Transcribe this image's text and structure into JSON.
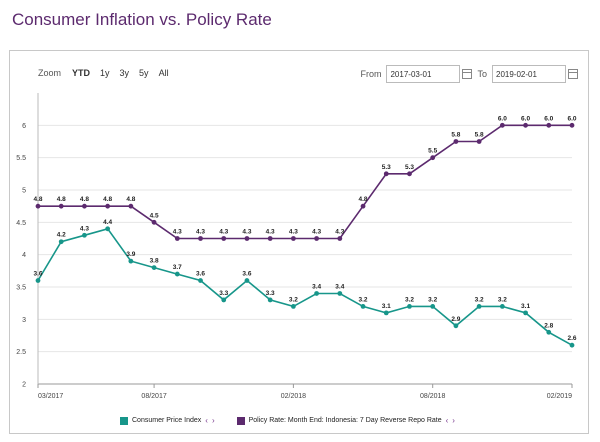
{
  "page": {
    "title": "Consumer Inflation vs. Policy Rate"
  },
  "toolbar": {
    "zoom_label": "Zoom",
    "zoom_buttons": [
      "YTD",
      "1y",
      "3y",
      "5y",
      "All"
    ],
    "from_label": "From",
    "from_value": "2017-03-01",
    "to_label": "To",
    "to_value": "2019-02-01"
  },
  "colors": {
    "cpi": "#17968a",
    "policy": "#5c2a6e",
    "grid": "#e6e6e6"
  },
  "chart_data": {
    "type": "line",
    "title": "Consumer Inflation vs. Policy Rate",
    "x_ticks": [
      "03/2017",
      "08/2017",
      "02/2018",
      "08/2018",
      "02/2019"
    ],
    "x_tick_index": [
      0,
      5,
      11,
      17,
      23
    ],
    "ylim": [
      2,
      6.5
    ],
    "y_ticks": [
      "2",
      "2.5",
      "3",
      "3.5",
      "4",
      "4.5",
      "5",
      "5.5",
      "6"
    ],
    "series": [
      {
        "name": "Consumer Price Index",
        "values": [
          3.6,
          4.2,
          4.3,
          4.4,
          3.9,
          3.8,
          3.7,
          3.6,
          3.3,
          3.6,
          3.3,
          3.2,
          3.4,
          3.4,
          3.2,
          3.1,
          3.2,
          3.2,
          2.9,
          3.2,
          3.2,
          3.1,
          2.8,
          2.6
        ],
        "labels": [
          "3.6",
          "4.2",
          "4.3",
          "4.4",
          "3.9",
          "3.8",
          "3.7",
          "3.6",
          "3.3",
          "3.6",
          "3.3",
          "3.2",
          "3.4",
          "3.4",
          "3.2",
          "3.1",
          "3.2",
          "3.2",
          "2.9",
          "3.2",
          "3.2",
          "3.1",
          "2.8",
          "2.6"
        ]
      },
      {
        "name": "Policy Rate: Month End: Indonesia: 7 Day Reverse Repo Rate",
        "values": [
          4.75,
          4.75,
          4.75,
          4.75,
          4.75,
          4.5,
          4.25,
          4.25,
          4.25,
          4.25,
          4.25,
          4.25,
          4.25,
          4.25,
          4.75,
          5.25,
          5.25,
          5.5,
          5.75,
          5.75,
          6.0,
          6.0,
          6.0,
          6.0
        ],
        "labels": [
          "4.8",
          "4.8",
          "4.8",
          "4.8",
          "4.8",
          "4.5",
          "4.3",
          "4.3",
          "4.3",
          "4.3",
          "4.3",
          "4.3",
          "4.3",
          "4.3",
          "4.8",
          "5.3",
          "5.3",
          "5.5",
          "5.8",
          "5.8",
          "6.0",
          "6.0",
          "6.0",
          "6.0"
        ]
      }
    ]
  }
}
